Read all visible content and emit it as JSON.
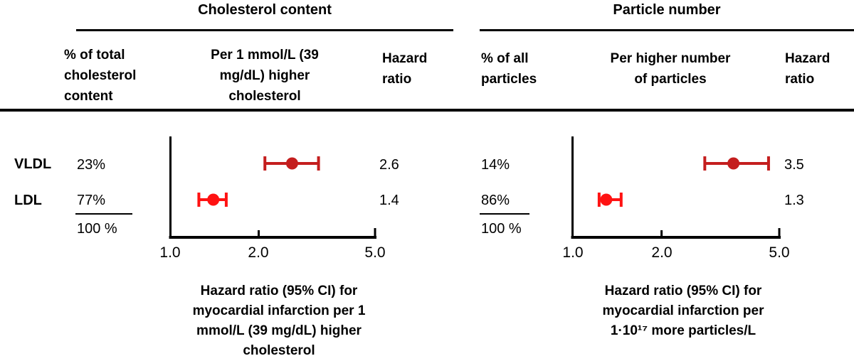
{
  "chart_data": [
    {
      "type": "forest",
      "title": "Cholesterol content",
      "column_headers": [
        "% of total\ncholesterol\ncontent",
        "Per 1 mmol/L (39\nmg/dL) higher\ncholesterol",
        "Hazard\nratio"
      ],
      "x_axis": {
        "scale": "log",
        "range": [
          1.0,
          5.0
        ],
        "ticks": [
          1.0,
          2.0,
          5.0
        ],
        "tick_labels": [
          "1.0",
          "2.0",
          "5.0"
        ]
      },
      "rows": [
        {
          "label": "VLDL",
          "percent": "23%",
          "estimate": 2.6,
          "ci_low": 2.1,
          "ci_high": 3.2,
          "hazard_ratio": "2.6",
          "marker_color": "#C41E1E"
        },
        {
          "label": "LDL",
          "percent": "77%",
          "estimate": 1.4,
          "ci_low": 1.25,
          "ci_high": 1.55,
          "hazard_ratio": "1.4",
          "marker_color": "#FF1212"
        }
      ],
      "total_percent": "100 %",
      "caption": "Hazard ratio (95% CI) for\nmyocardial infarction per 1\nmmol/L (39 mg/dL) higher\ncholesterol"
    },
    {
      "type": "forest",
      "title": "Particle number",
      "column_headers": [
        "% of all\nparticles",
        "Per higher number\nof particles",
        "Hazard\nratio"
      ],
      "x_axis": {
        "scale": "log",
        "range": [
          1.0,
          5.0
        ],
        "ticks": [
          1.0,
          2.0,
          5.0
        ],
        "tick_labels": [
          "1.0",
          "2.0",
          "5.0"
        ]
      },
      "rows": [
        {
          "label": "VLDL",
          "percent": "14%",
          "estimate": 3.5,
          "ci_low": 2.8,
          "ci_high": 4.6,
          "hazard_ratio": "3.5",
          "marker_color": "#C41E1E"
        },
        {
          "label": "LDL",
          "percent": "86%",
          "estimate": 1.3,
          "ci_low": 1.23,
          "ci_high": 1.46,
          "hazard_ratio": "1.3",
          "marker_color": "#FF1212"
        }
      ],
      "total_percent": "100 %",
      "caption": "Hazard ratio (95% CI) for\nmyocardial infarction per\n1·10¹⁷ more particles/L"
    }
  ],
  "colors": {
    "axis": "#000000",
    "vldl_marker": "#C41E1E",
    "ldl_marker": "#FF1212"
  }
}
